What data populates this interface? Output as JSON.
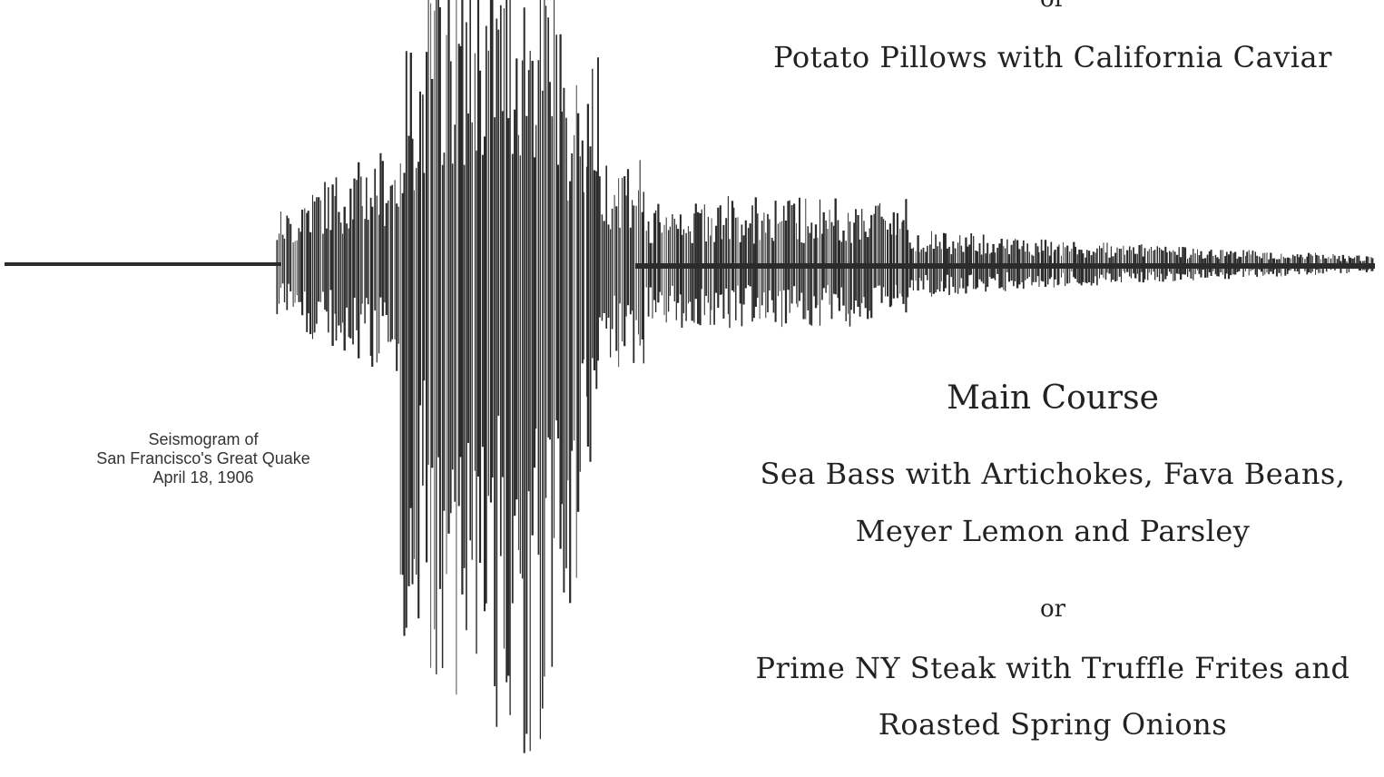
{
  "caption": {
    "line1": "Seismogram of",
    "line2": "San Francisco's Great Quake",
    "line3": "April 18, 1906"
  },
  "starter": {
    "or_top": "or",
    "dish": "Potato Pillows with California Caviar"
  },
  "main_course": {
    "heading": "Main Course",
    "dish1_line1": "Sea Bass with Artichokes, Fava Beans,",
    "dish1_line2": "Meyer Lemon and Parsley",
    "or": "or",
    "dish2_line1": "Prime NY Steak with Truffle Frites and",
    "dish2_line2": "Roasted Spring Onions"
  },
  "colors": {
    "ink": "#1a1a1a",
    "trace": "#2b2b2b"
  }
}
